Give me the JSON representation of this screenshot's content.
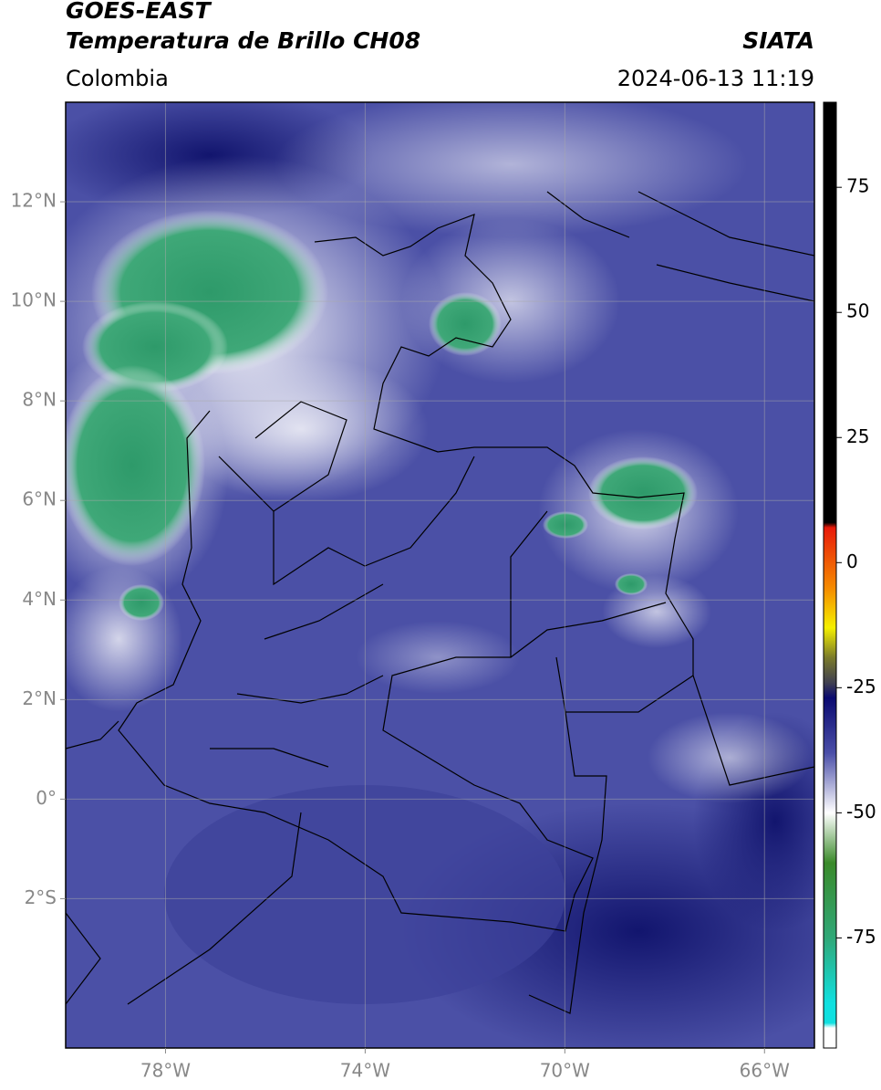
{
  "header": {
    "title": "GOES-EAST",
    "subtitle": "Temperatura de Brillo CH08",
    "source": "SIATA",
    "region": "Colombia",
    "timestamp": "2024-06-13 11:19"
  },
  "map": {
    "xlim": [
      -80,
      -65
    ],
    "ylim": [
      -5,
      14
    ],
    "grid": true,
    "xticks": [
      {
        "value": -78,
        "label": "78°W"
      },
      {
        "value": -74,
        "label": "74°W"
      },
      {
        "value": -70,
        "label": "70°W"
      },
      {
        "value": -66,
        "label": "66°W"
      }
    ],
    "yticks": [
      {
        "value": 12,
        "label": "12°N"
      },
      {
        "value": 10,
        "label": "10°N"
      },
      {
        "value": 8,
        "label": "8°N"
      },
      {
        "value": 6,
        "label": "6°N"
      },
      {
        "value": 4,
        "label": "4°N"
      },
      {
        "value": 2,
        "label": "2°N"
      },
      {
        "value": 0,
        "label": "0°"
      },
      {
        "value": -2,
        "label": "2°S"
      }
    ]
  },
  "colorbar": {
    "lim": [
      -97,
      92
    ],
    "ticks": [
      75,
      50,
      25,
      0,
      -25,
      -50,
      -75
    ],
    "stops": [
      {
        "value": 92,
        "color": "#000000"
      },
      {
        "value": 8,
        "color": "#000000"
      },
      {
        "value": 7,
        "color": "#e81a0a"
      },
      {
        "value": -5,
        "color": "#f58a00"
      },
      {
        "value": -13,
        "color": "#f5f000"
      },
      {
        "value": -19,
        "color": "#7a7a2a"
      },
      {
        "value": -24,
        "color": "#404050"
      },
      {
        "value": -27,
        "color": "#0a0a70"
      },
      {
        "value": -38,
        "color": "#4a4ea8"
      },
      {
        "value": -50,
        "color": "#ffffff"
      },
      {
        "value": -60,
        "color": "#3a8a2a"
      },
      {
        "value": -75,
        "color": "#30a878"
      },
      {
        "value": -88,
        "color": "#10e0e0"
      },
      {
        "value": -92,
        "color": "#10e0e0"
      },
      {
        "value": -93,
        "color": "#ffffff"
      },
      {
        "value": -97,
        "color": "#ffffff"
      }
    ]
  }
}
